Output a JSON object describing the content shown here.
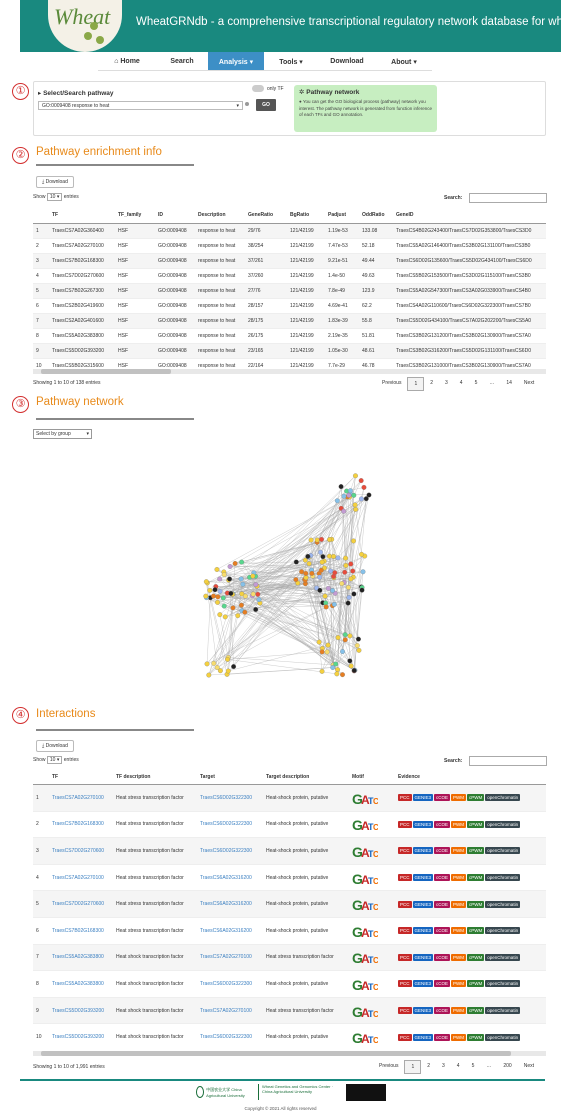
{
  "header": {
    "title": "WheatGRNdb - a comprehensive transcriptional regulatory network database for wheat",
    "logo_text": "Wheat"
  },
  "nav": {
    "items": [
      {
        "label": "⌂ Home"
      },
      {
        "label": "Search"
      },
      {
        "label": "Analysis ▾"
      },
      {
        "label": "Tools ▾"
      },
      {
        "label": "Download"
      },
      {
        "label": "About ▾"
      }
    ],
    "active_index": 2
  },
  "section1": {
    "number": "①",
    "title": "Select/Search pathway",
    "toggle_label": "only TF",
    "select_value": "GO:0009408 response to heat",
    "go_button": "GO",
    "info": {
      "title": "Pathway network",
      "text": "You can get the GO biological process (pathway) network you interest. The pathway network is generated from function inference of each TFs and GO annotation."
    }
  },
  "section2": {
    "number": "②",
    "title": "Pathway enrichment info",
    "download": "Download",
    "show": "Show",
    "show_value": "10",
    "entries": "entries",
    "search": "Search:",
    "columns": [
      "TF",
      "TF_family",
      "ID",
      "Description",
      "GeneRatio",
      "BgRatio",
      "Padjust",
      "OddRatio",
      "GeneID"
    ],
    "rows": [
      [
        "1",
        "TraesCS7A02G360400",
        "HSF",
        "GO:0009408",
        "response to heat",
        "29/76",
        "121/42199",
        "1.19e-53",
        "133.08",
        "TraesCS4B02G243400/TraesCS7D02G353800/TraesCS3D0"
      ],
      [
        "2",
        "TraesCS7A02G270100",
        "HSF",
        "GO:0009408",
        "response to heat",
        "38/254",
        "121/42199",
        "7.47e-53",
        "52.18",
        "TraesCS5A02G146400/TraesCS3B02G131100/TraesCS3B0"
      ],
      [
        "3",
        "TraesCS7B02G168300",
        "HSF",
        "GO:0009408",
        "response to heat",
        "37/261",
        "121/42199",
        "9.21e-51",
        "49.44",
        "TraesCS6D02G135600/TraesCS5D02G434100/TraesCS6D0"
      ],
      [
        "4",
        "TraesCS7D02G270600",
        "HSF",
        "GO:0009408",
        "response to heat",
        "37/260",
        "121/42199",
        "1.4e-50",
        "49.63",
        "TraesCS5B02G153500/TraesCS3D02G115100/TraesCS3B0"
      ],
      [
        "5",
        "TraesCS7B02G267300",
        "HSF",
        "GO:0009408",
        "response to heat",
        "27/76",
        "121/42199",
        "7.8e-49",
        "123.9",
        "TraesCS5A02G547300/TraesCS3A02G033900/TraesCS4B0"
      ],
      [
        "6",
        "TraesCS2B02G419600",
        "HSF",
        "GO:0009408",
        "response to heat",
        "28/157",
        "121/42199",
        "4.69e-41",
        "62.2",
        "TraesCS4A02G110600/TraesCS6D02G322300/TraesCS7B0"
      ],
      [
        "7",
        "TraesCS2A02G401600",
        "HSF",
        "GO:0009408",
        "response to heat",
        "28/175",
        "121/42199",
        "1.83e-39",
        "55.8",
        "TraesCS5D02G434100/TraesCS7A02G202200/TraesCS5A0"
      ],
      [
        "8",
        "TraesCS5A02G383800",
        "HSF",
        "GO:0009408",
        "response to heat",
        "26/175",
        "121/42199",
        "2.19e-35",
        "51.81",
        "TraesCS3B02G131200/TraesCS3B02G130900/TraesCS7A0"
      ],
      [
        "9",
        "TraesCS5D02G393200",
        "HSF",
        "GO:0009408",
        "response to heat",
        "23/165",
        "121/42199",
        "1.05e-30",
        "48.61",
        "TraesCS3B02G316200/TraesCS5D02G131100/TraesCS6D0"
      ],
      [
        "10",
        "TraesCS5B02G315600",
        "HSF",
        "GO:0009408",
        "response to heat",
        "22/164",
        "121/42199",
        "7.7e-29",
        "46.78",
        "TraesCS3B02G131000/TraesCS3B02G130900/TraesCS7A0"
      ]
    ],
    "info": "Showing 1 to 10 of 138 entries",
    "pages": [
      "Previous",
      "1",
      "2",
      "3",
      "4",
      "5",
      "…",
      "14",
      "Next"
    ]
  },
  "section3": {
    "number": "③",
    "title": "Pathway network",
    "select_value": "Select by group"
  },
  "section4": {
    "number": "④",
    "title": "Interactions",
    "download": "Download",
    "show": "Show",
    "show_value": "10",
    "entries": "entries",
    "search": "Search:",
    "columns": [
      "TF",
      "TF description",
      "Target",
      "Target description",
      "Motif",
      "Evidence"
    ],
    "rows": [
      [
        "1",
        "TraesCS7A02G270100",
        "Heat stress transcription factor",
        "TraesCS6D02G322300",
        "Heat-shock protein, putative"
      ],
      [
        "2",
        "TraesCS7B02G168300",
        "Heat stress transcription factor",
        "TraesCS6D02G322300",
        "Heat-shock protein, putative"
      ],
      [
        "3",
        "TraesCS7D02G270600",
        "Heat stress transcription factor",
        "TraesCS6D02G322300",
        "Heat-shock protein, putative"
      ],
      [
        "4",
        "TraesCS7A02G270100",
        "Heat stress transcription factor",
        "TraesCS6A02G316200",
        "Heat-shock protein, putative"
      ],
      [
        "5",
        "TraesCS7D02G270600",
        "Heat stress transcription factor",
        "TraesCS6A02G316200",
        "Heat-shock protein, putative"
      ],
      [
        "6",
        "TraesCS7B02G168300",
        "Heat stress transcription factor",
        "TraesCS6A02G316200",
        "Heat-shock protein, putative"
      ],
      [
        "7",
        "TraesCS5A02G383800",
        "Heat shock transcription factor",
        "TraesCS7A02G270100",
        "Heat stress transcription factor"
      ],
      [
        "8",
        "TraesCS5A02G383800",
        "Heat shock transcription factor",
        "TraesCS6D02G322300",
        "Heat-shock protein, putative"
      ],
      [
        "9",
        "TraesCS5D02G393200",
        "Heat shock transcription factor",
        "TraesCS7A02G270100",
        "Heat stress transcription factor"
      ],
      [
        "10",
        "TraesCS5D02G393200",
        "Heat shock transcription factor",
        "TraesCS6D02G322300",
        "Heat-shock protein, putative"
      ]
    ],
    "evidence": [
      {
        "label": "PCC",
        "color": "#c62828"
      },
      {
        "label": "GENIE3",
        "color": "#1565c0"
      },
      {
        "label": "cCOE",
        "color": "#ad1457"
      },
      {
        "label": "PWM",
        "color": "#ef6c00"
      },
      {
        "label": "cPWM",
        "color": "#2e7d32"
      },
      {
        "label": "openChromatin",
        "color": "#37474f"
      }
    ],
    "info": "Showing 1 to 10 of 1,991 entries",
    "pages": [
      "Previous",
      "1",
      "2",
      "3",
      "4",
      "5",
      "…",
      "200",
      "Next"
    ]
  },
  "footer": {
    "copyright": "Copyright © 2021 All rights reserved",
    "logo1": "中国农业大学 China Agricultural University",
    "logo2": "Wheat Genetics and Genomics Center · China Agricultural University"
  }
}
